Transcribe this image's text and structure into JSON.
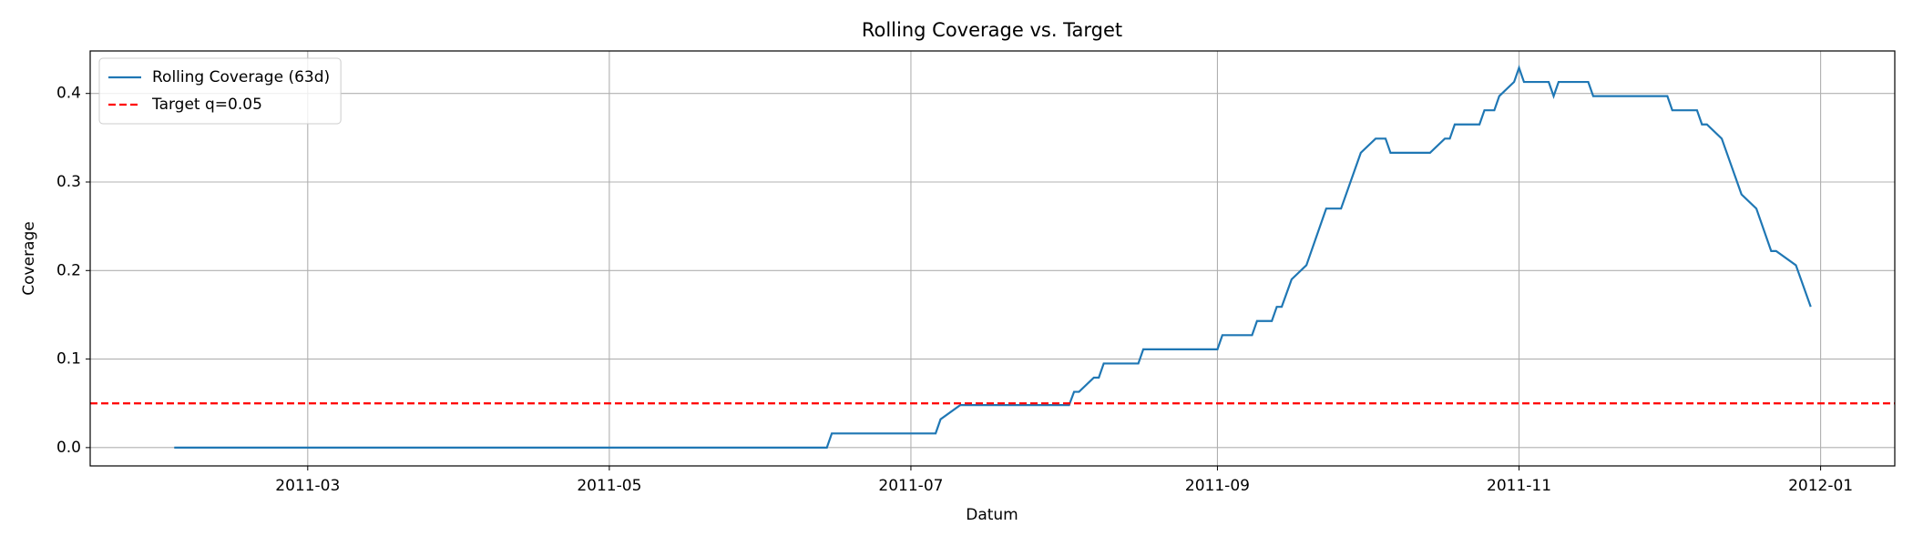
{
  "chart_data": {
    "type": "line",
    "title": "Rolling Coverage vs. Target",
    "x_label": "Datum",
    "y_label": "Coverage",
    "x": [
      "2011-02-02",
      "2011-06-14",
      "2011-06-15",
      "2011-07-06",
      "2011-07-07",
      "2011-07-11",
      "2011-08-02",
      "2011-08-03",
      "2011-08-04",
      "2011-08-07",
      "2011-08-08",
      "2011-08-09",
      "2011-08-16",
      "2011-08-17",
      "2011-09-01",
      "2011-09-02",
      "2011-09-08",
      "2011-09-09",
      "2011-09-12",
      "2011-09-13",
      "2011-09-14",
      "2011-09-16",
      "2011-09-19",
      "2011-09-23",
      "2011-09-26",
      "2011-09-30",
      "2011-10-03",
      "2011-10-05",
      "2011-10-06",
      "2011-10-14",
      "2011-10-17",
      "2011-10-18",
      "2011-10-19",
      "2011-10-24",
      "2011-10-25",
      "2011-10-27",
      "2011-10-28",
      "2011-10-31",
      "2011-11-01",
      "2011-11-02",
      "2011-11-07",
      "2011-11-08",
      "2011-11-09",
      "2011-11-15",
      "2011-11-16",
      "2011-12-01",
      "2011-12-02",
      "2011-12-07",
      "2011-12-08",
      "2011-12-09",
      "2011-12-12",
      "2011-12-16",
      "2011-12-19",
      "2011-12-22",
      "2011-12-23",
      "2011-12-27",
      "2011-12-30"
    ],
    "series": [
      {
        "name": "Rolling Coverage (63d)",
        "color": "#1f77b4",
        "values": [
          0,
          0,
          0.016,
          0.016,
          0.032,
          0.048,
          0.048,
          0.063,
          0.063,
          0.079,
          0.079,
          0.095,
          0.095,
          0.111,
          0.111,
          0.127,
          0.127,
          0.143,
          0.143,
          0.159,
          0.159,
          0.19,
          0.206,
          0.27,
          0.27,
          0.333,
          0.349,
          0.349,
          0.333,
          0.333,
          0.349,
          0.349,
          0.365,
          0.365,
          0.381,
          0.381,
          0.397,
          0.413,
          0.429,
          0.413,
          0.413,
          0.397,
          0.413,
          0.413,
          0.397,
          0.397,
          0.381,
          0.381,
          0.365,
          0.365,
          0.349,
          0.286,
          0.27,
          0.222,
          0.222,
          0.206,
          0.159
        ]
      }
    ],
    "hlines": [
      {
        "name": "Target q=0.05",
        "y": 0.05,
        "color": "#ff0000",
        "dashed": true
      }
    ],
    "xlim": [
      "2011-01-16",
      "2012-01-16"
    ],
    "xticks": [
      "2011-03",
      "2011-05",
      "2011-07",
      "2011-09",
      "2011-11",
      "2012-01"
    ],
    "ylim": [
      -0.0207,
      0.448
    ],
    "yticks": [
      {
        "value": 0,
        "label": "0.0"
      },
      0.1,
      0.2,
      0.3,
      0.4
    ],
    "grid": true,
    "legend": "upper left"
  }
}
